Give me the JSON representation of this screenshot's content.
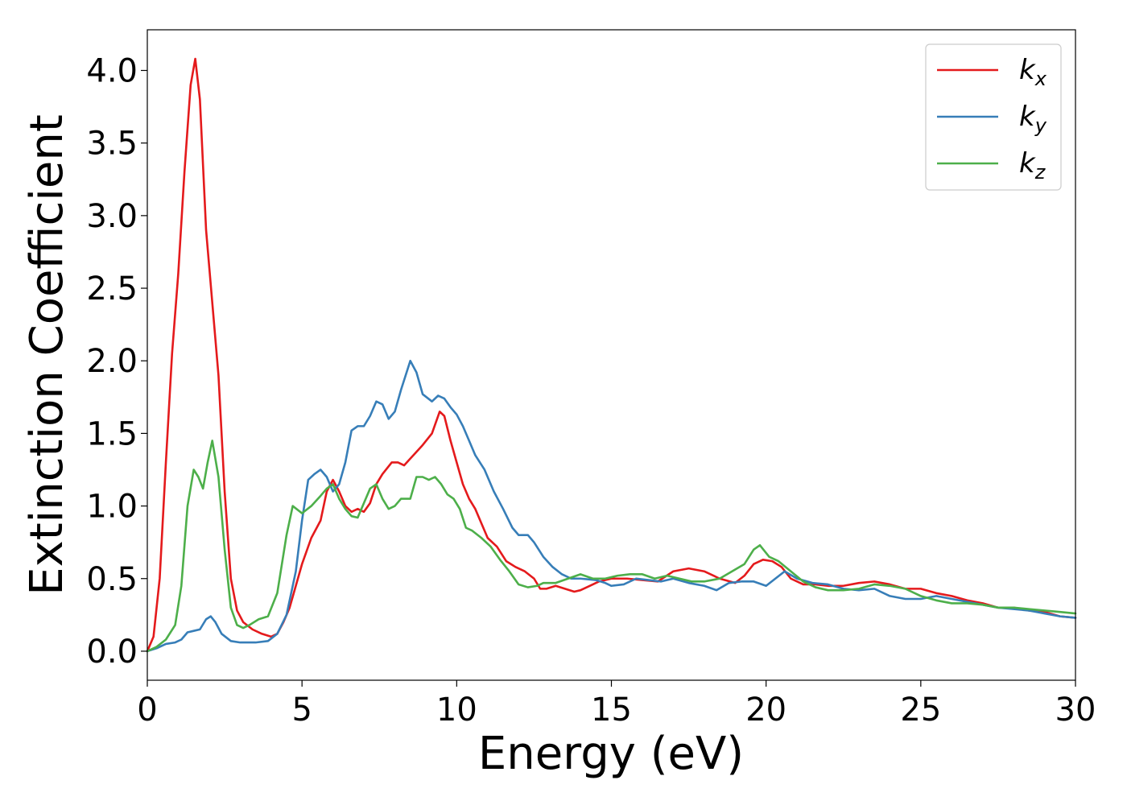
{
  "chart_data": {
    "type": "line",
    "title": "",
    "xlabel": "Energy (eV)",
    "ylabel": "Extinction Coefficient",
    "xlim": [
      0,
      30
    ],
    "ylim": [
      -0.2,
      4.28
    ],
    "xticks": [
      0,
      5,
      10,
      15,
      20,
      25,
      30
    ],
    "yticks": [
      0.0,
      0.5,
      1.0,
      1.5,
      2.0,
      2.5,
      3.0,
      3.5,
      4.0
    ],
    "xtick_labels": [
      "0",
      "5",
      "10",
      "15",
      "20",
      "25",
      "30"
    ],
    "ytick_labels": [
      "0.0",
      "0.5",
      "1.0",
      "1.5",
      "2.0",
      "2.5",
      "3.0",
      "3.5",
      "4.0"
    ],
    "grid": false,
    "legend_position": "top-right",
    "series": [
      {
        "name": "k_x",
        "legend_main": "k",
        "legend_sub": "x",
        "color": "#e41a1c",
        "points": [
          [
            0,
            0
          ],
          [
            0.2,
            0.1
          ],
          [
            0.4,
            0.5
          ],
          [
            0.6,
            1.3
          ],
          [
            0.8,
            2.05
          ],
          [
            1.0,
            2.6
          ],
          [
            1.2,
            3.3
          ],
          [
            1.4,
            3.9
          ],
          [
            1.55,
            4.08
          ],
          [
            1.7,
            3.8
          ],
          [
            1.9,
            2.9
          ],
          [
            2.1,
            2.4
          ],
          [
            2.3,
            1.9
          ],
          [
            2.5,
            1.1
          ],
          [
            2.7,
            0.5
          ],
          [
            2.9,
            0.28
          ],
          [
            3.1,
            0.2
          ],
          [
            3.4,
            0.15
          ],
          [
            3.7,
            0.12
          ],
          [
            4.0,
            0.1
          ],
          [
            4.2,
            0.12
          ],
          [
            4.4,
            0.2
          ],
          [
            4.6,
            0.3
          ],
          [
            4.8,
            0.45
          ],
          [
            5.0,
            0.6
          ],
          [
            5.3,
            0.78
          ],
          [
            5.6,
            0.9
          ],
          [
            5.8,
            1.1
          ],
          [
            6.0,
            1.18
          ],
          [
            6.2,
            1.1
          ],
          [
            6.4,
            1.0
          ],
          [
            6.6,
            0.96
          ],
          [
            6.8,
            0.98
          ],
          [
            7.0,
            0.96
          ],
          [
            7.2,
            1.02
          ],
          [
            7.4,
            1.15
          ],
          [
            7.6,
            1.22
          ],
          [
            7.9,
            1.3
          ],
          [
            8.1,
            1.3
          ],
          [
            8.3,
            1.28
          ],
          [
            8.6,
            1.35
          ],
          [
            8.9,
            1.42
          ],
          [
            9.2,
            1.5
          ],
          [
            9.45,
            1.65
          ],
          [
            9.6,
            1.62
          ],
          [
            9.8,
            1.45
          ],
          [
            10.0,
            1.3
          ],
          [
            10.2,
            1.15
          ],
          [
            10.4,
            1.05
          ],
          [
            10.6,
            0.98
          ],
          [
            10.8,
            0.88
          ],
          [
            11.0,
            0.78
          ],
          [
            11.3,
            0.72
          ],
          [
            11.6,
            0.62
          ],
          [
            11.9,
            0.58
          ],
          [
            12.2,
            0.55
          ],
          [
            12.5,
            0.5
          ],
          [
            12.7,
            0.43
          ],
          [
            12.9,
            0.43
          ],
          [
            13.2,
            0.45
          ],
          [
            13.5,
            0.43
          ],
          [
            13.8,
            0.41
          ],
          [
            14.0,
            0.42
          ],
          [
            14.3,
            0.45
          ],
          [
            14.6,
            0.48
          ],
          [
            15.0,
            0.5
          ],
          [
            15.5,
            0.5
          ],
          [
            16.0,
            0.49
          ],
          [
            16.5,
            0.48
          ],
          [
            17.0,
            0.55
          ],
          [
            17.5,
            0.57
          ],
          [
            18.0,
            0.55
          ],
          [
            18.5,
            0.5
          ],
          [
            19.0,
            0.47
          ],
          [
            19.3,
            0.52
          ],
          [
            19.6,
            0.6
          ],
          [
            19.9,
            0.63
          ],
          [
            20.2,
            0.62
          ],
          [
            20.5,
            0.58
          ],
          [
            20.8,
            0.5
          ],
          [
            21.2,
            0.46
          ],
          [
            21.6,
            0.46
          ],
          [
            22.0,
            0.45
          ],
          [
            22.5,
            0.45
          ],
          [
            23.0,
            0.47
          ],
          [
            23.5,
            0.48
          ],
          [
            24.0,
            0.46
          ],
          [
            24.5,
            0.43
          ],
          [
            25.0,
            0.43
          ],
          [
            25.5,
            0.4
          ],
          [
            26.0,
            0.38
          ],
          [
            26.5,
            0.35
          ],
          [
            27.0,
            0.33
          ],
          [
            27.5,
            0.3
          ],
          [
            28.0,
            0.3
          ],
          [
            28.5,
            0.28
          ],
          [
            29.0,
            0.27
          ],
          [
            29.5,
            0.24
          ],
          [
            30.0,
            0.23
          ]
        ]
      },
      {
        "name": "k_y",
        "legend_main": "k",
        "legend_sub": "y",
        "color": "#377eb8",
        "points": [
          [
            0,
            0
          ],
          [
            0.3,
            0.02
          ],
          [
            0.6,
            0.05
          ],
          [
            0.9,
            0.06
          ],
          [
            1.1,
            0.08
          ],
          [
            1.3,
            0.13
          ],
          [
            1.5,
            0.14
          ],
          [
            1.7,
            0.15
          ],
          [
            1.9,
            0.22
          ],
          [
            2.05,
            0.24
          ],
          [
            2.2,
            0.2
          ],
          [
            2.4,
            0.12
          ],
          [
            2.7,
            0.07
          ],
          [
            3.0,
            0.06
          ],
          [
            3.5,
            0.06
          ],
          [
            3.9,
            0.07
          ],
          [
            4.2,
            0.12
          ],
          [
            4.5,
            0.25
          ],
          [
            4.8,
            0.55
          ],
          [
            5.0,
            0.9
          ],
          [
            5.2,
            1.18
          ],
          [
            5.4,
            1.22
          ],
          [
            5.6,
            1.25
          ],
          [
            5.8,
            1.2
          ],
          [
            6.0,
            1.1
          ],
          [
            6.2,
            1.15
          ],
          [
            6.4,
            1.3
          ],
          [
            6.6,
            1.52
          ],
          [
            6.8,
            1.55
          ],
          [
            7.0,
            1.55
          ],
          [
            7.2,
            1.62
          ],
          [
            7.4,
            1.72
          ],
          [
            7.6,
            1.7
          ],
          [
            7.8,
            1.6
          ],
          [
            8.0,
            1.65
          ],
          [
            8.2,
            1.8
          ],
          [
            8.5,
            2.0
          ],
          [
            8.7,
            1.92
          ],
          [
            8.9,
            1.77
          ],
          [
            9.2,
            1.72
          ],
          [
            9.4,
            1.76
          ],
          [
            9.6,
            1.74
          ],
          [
            9.8,
            1.68
          ],
          [
            10.0,
            1.63
          ],
          [
            10.2,
            1.55
          ],
          [
            10.4,
            1.45
          ],
          [
            10.6,
            1.35
          ],
          [
            10.9,
            1.25
          ],
          [
            11.2,
            1.1
          ],
          [
            11.5,
            0.98
          ],
          [
            11.8,
            0.85
          ],
          [
            12.0,
            0.8
          ],
          [
            12.3,
            0.8
          ],
          [
            12.5,
            0.75
          ],
          [
            12.8,
            0.65
          ],
          [
            13.1,
            0.58
          ],
          [
            13.4,
            0.53
          ],
          [
            13.7,
            0.5
          ],
          [
            14.0,
            0.5
          ],
          [
            14.5,
            0.49
          ],
          [
            14.8,
            0.47
          ],
          [
            15.0,
            0.45
          ],
          [
            15.4,
            0.46
          ],
          [
            15.8,
            0.5
          ],
          [
            16.2,
            0.49
          ],
          [
            16.6,
            0.48
          ],
          [
            17.0,
            0.5
          ],
          [
            17.5,
            0.47
          ],
          [
            18.0,
            0.45
          ],
          [
            18.4,
            0.42
          ],
          [
            18.8,
            0.47
          ],
          [
            19.2,
            0.48
          ],
          [
            19.6,
            0.48
          ],
          [
            20.0,
            0.45
          ],
          [
            20.3,
            0.5
          ],
          [
            20.6,
            0.55
          ],
          [
            21.0,
            0.5
          ],
          [
            21.5,
            0.47
          ],
          [
            22.0,
            0.46
          ],
          [
            22.5,
            0.43
          ],
          [
            23.0,
            0.42
          ],
          [
            23.5,
            0.43
          ],
          [
            24.0,
            0.38
          ],
          [
            24.5,
            0.36
          ],
          [
            25.0,
            0.36
          ],
          [
            25.5,
            0.38
          ],
          [
            26.0,
            0.36
          ],
          [
            26.5,
            0.34
          ],
          [
            27.0,
            0.32
          ],
          [
            27.5,
            0.3
          ],
          [
            28.0,
            0.29
          ],
          [
            28.5,
            0.28
          ],
          [
            29.0,
            0.26
          ],
          [
            29.5,
            0.24
          ],
          [
            30.0,
            0.23
          ]
        ]
      },
      {
        "name": "k_z",
        "legend_main": "k",
        "legend_sub": "z",
        "color": "#4daf4a",
        "points": [
          [
            0,
            0
          ],
          [
            0.3,
            0.03
          ],
          [
            0.6,
            0.08
          ],
          [
            0.9,
            0.18
          ],
          [
            1.1,
            0.45
          ],
          [
            1.3,
            1.0
          ],
          [
            1.5,
            1.25
          ],
          [
            1.65,
            1.2
          ],
          [
            1.8,
            1.12
          ],
          [
            1.95,
            1.3
          ],
          [
            2.1,
            1.45
          ],
          [
            2.3,
            1.2
          ],
          [
            2.5,
            0.7
          ],
          [
            2.7,
            0.3
          ],
          [
            2.9,
            0.18
          ],
          [
            3.1,
            0.16
          ],
          [
            3.3,
            0.18
          ],
          [
            3.6,
            0.22
          ],
          [
            3.9,
            0.24
          ],
          [
            4.2,
            0.4
          ],
          [
            4.5,
            0.8
          ],
          [
            4.7,
            1.0
          ],
          [
            5.0,
            0.95
          ],
          [
            5.3,
            1.0
          ],
          [
            5.6,
            1.07
          ],
          [
            5.8,
            1.12
          ],
          [
            6.0,
            1.15
          ],
          [
            6.2,
            1.05
          ],
          [
            6.4,
            0.98
          ],
          [
            6.6,
            0.93
          ],
          [
            6.8,
            0.92
          ],
          [
            7.0,
            1.02
          ],
          [
            7.2,
            1.12
          ],
          [
            7.4,
            1.15
          ],
          [
            7.6,
            1.05
          ],
          [
            7.8,
            0.98
          ],
          [
            8.0,
            1.0
          ],
          [
            8.2,
            1.05
          ],
          [
            8.5,
            1.05
          ],
          [
            8.7,
            1.2
          ],
          [
            8.9,
            1.2
          ],
          [
            9.1,
            1.18
          ],
          [
            9.3,
            1.2
          ],
          [
            9.5,
            1.15
          ],
          [
            9.7,
            1.08
          ],
          [
            9.9,
            1.05
          ],
          [
            10.1,
            0.98
          ],
          [
            10.3,
            0.85
          ],
          [
            10.5,
            0.83
          ],
          [
            10.8,
            0.78
          ],
          [
            11.1,
            0.72
          ],
          [
            11.4,
            0.63
          ],
          [
            11.7,
            0.55
          ],
          [
            12.0,
            0.46
          ],
          [
            12.3,
            0.44
          ],
          [
            12.6,
            0.45
          ],
          [
            12.8,
            0.47
          ],
          [
            13.2,
            0.47
          ],
          [
            13.6,
            0.5
          ],
          [
            14.0,
            0.53
          ],
          [
            14.4,
            0.5
          ],
          [
            14.8,
            0.5
          ],
          [
            15.2,
            0.52
          ],
          [
            15.6,
            0.53
          ],
          [
            16.0,
            0.53
          ],
          [
            16.4,
            0.5
          ],
          [
            16.8,
            0.52
          ],
          [
            17.2,
            0.5
          ],
          [
            17.6,
            0.48
          ],
          [
            18.0,
            0.48
          ],
          [
            18.5,
            0.5
          ],
          [
            18.9,
            0.55
          ],
          [
            19.3,
            0.6
          ],
          [
            19.6,
            0.7
          ],
          [
            19.8,
            0.73
          ],
          [
            20.1,
            0.65
          ],
          [
            20.4,
            0.62
          ],
          [
            20.8,
            0.55
          ],
          [
            21.2,
            0.48
          ],
          [
            21.6,
            0.44
          ],
          [
            22.0,
            0.42
          ],
          [
            22.5,
            0.42
          ],
          [
            23.0,
            0.43
          ],
          [
            23.5,
            0.46
          ],
          [
            24.0,
            0.45
          ],
          [
            24.5,
            0.43
          ],
          [
            25.0,
            0.38
          ],
          [
            25.5,
            0.35
          ],
          [
            26.0,
            0.33
          ],
          [
            26.5,
            0.33
          ],
          [
            27.0,
            0.32
          ],
          [
            27.5,
            0.3
          ],
          [
            28.0,
            0.3
          ],
          [
            28.5,
            0.29
          ],
          [
            29.0,
            0.28
          ],
          [
            29.5,
            0.27
          ],
          [
            30.0,
            0.26
          ]
        ]
      }
    ]
  }
}
